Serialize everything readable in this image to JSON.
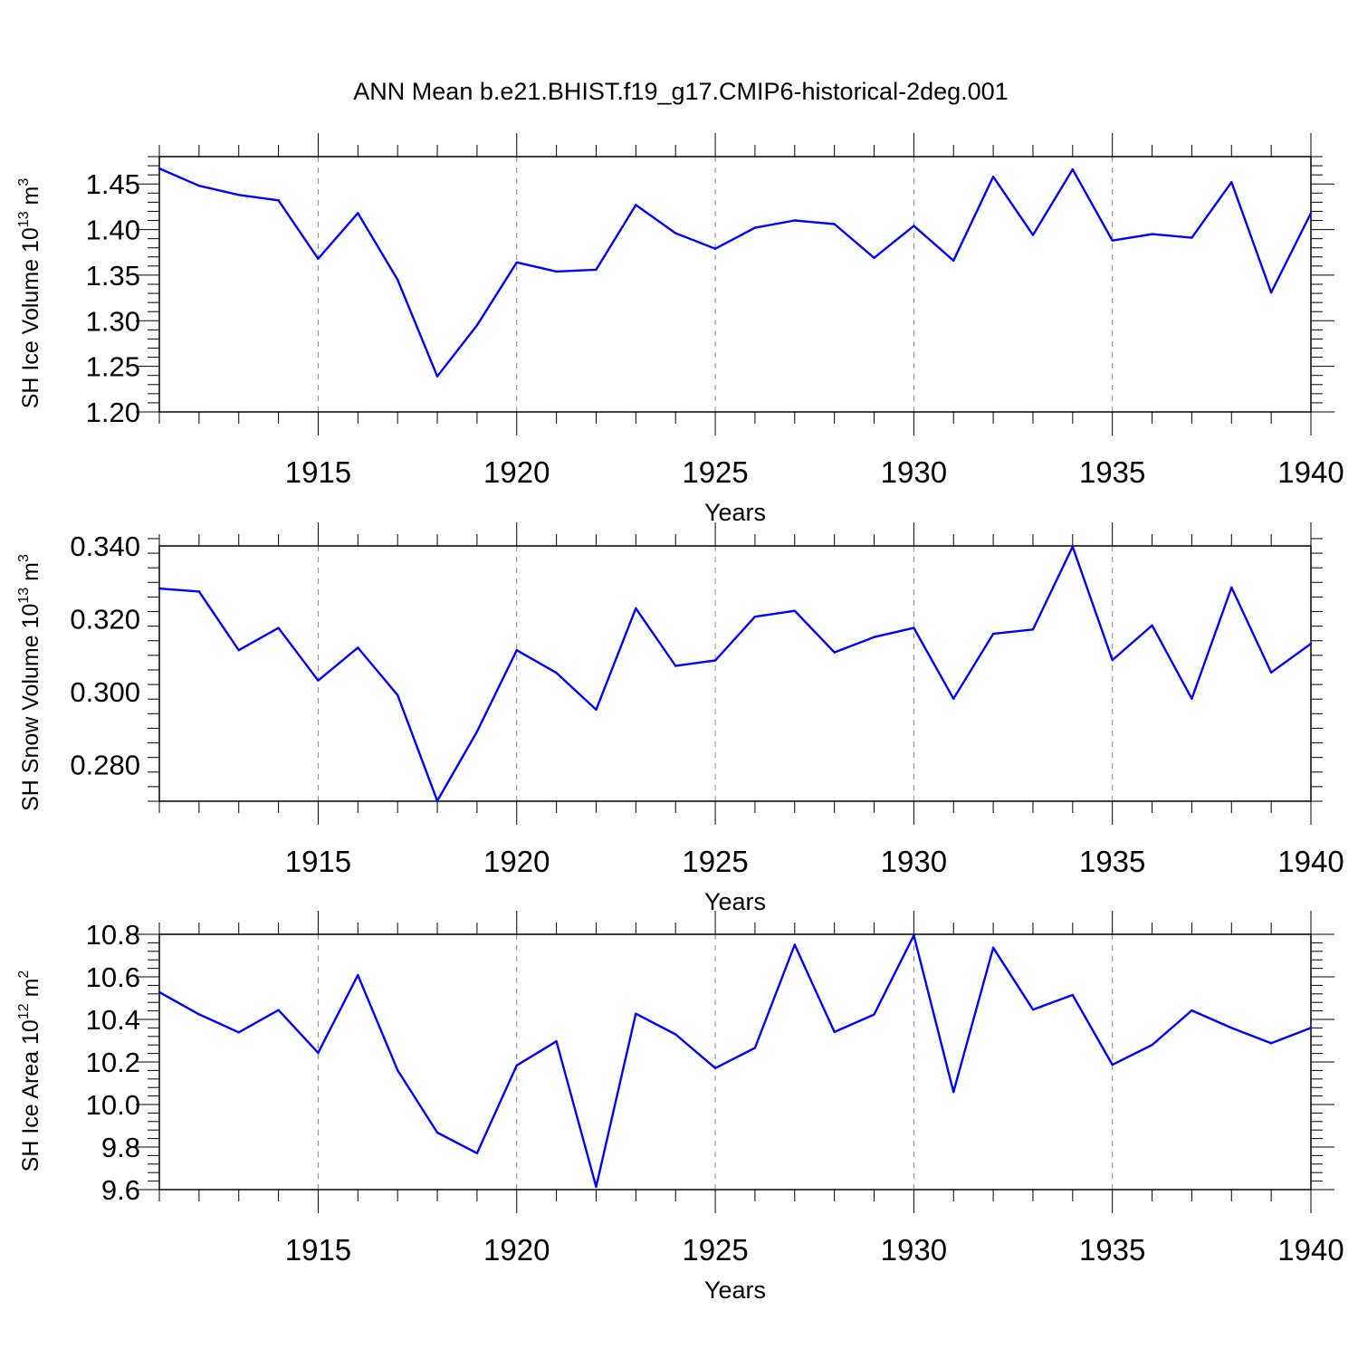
{
  "title": "ANN Mean b.e21.BHIST.f19_g17.CMIP6-historical-2deg.001",
  "chart_data": [
    {
      "type": "line",
      "ylabel": "SH Ice Volume 10",
      "ylabel_exp": "13",
      "ylabel_unit": " m",
      "ylabel_unit_exp": "3",
      "xlabel": "Years",
      "xlim": [
        1911,
        1940
      ],
      "ylim": [
        1.2,
        1.48
      ],
      "yticks": [
        "1.20",
        "1.25",
        "1.30",
        "1.35",
        "1.40",
        "1.45"
      ],
      "ytick_values": [
        1.2,
        1.25,
        1.3,
        1.35,
        1.4,
        1.45
      ],
      "xticks": [
        "1915",
        "1920",
        "1925",
        "1930",
        "1935",
        "1940"
      ],
      "xtick_values": [
        1915,
        1920,
        1925,
        1930,
        1935,
        1940
      ],
      "color": "#0000ff",
      "x": [
        1911,
        1912,
        1913,
        1914,
        1915,
        1916,
        1917,
        1918,
        1919,
        1920,
        1921,
        1922,
        1923,
        1924,
        1925,
        1926,
        1927,
        1928,
        1929,
        1930,
        1931,
        1932,
        1933,
        1934,
        1935,
        1936,
        1937,
        1938,
        1939,
        1940
      ],
      "y": [
        1.467,
        1.448,
        1.438,
        1.432,
        1.368,
        1.418,
        1.345,
        1.239,
        1.295,
        1.364,
        1.354,
        1.356,
        1.427,
        1.396,
        1.379,
        1.402,
        1.41,
        1.406,
        1.369,
        1.404,
        1.366,
        1.458,
        1.394,
        1.466,
        1.388,
        1.395,
        1.391,
        1.452,
        1.331,
        1.418
      ]
    },
    {
      "type": "line",
      "ylabel": "SH Snow Volume 10",
      "ylabel_exp": "13",
      "ylabel_unit": " m",
      "ylabel_unit_exp": "3",
      "xlabel": "Years",
      "xlim": [
        1911,
        1940
      ],
      "ylim": [
        0.27,
        0.34
      ],
      "yticks": [
        "0.280",
        "0.300",
        "0.320",
        "0.340"
      ],
      "ytick_values": [
        0.28,
        0.3,
        0.32,
        0.34
      ],
      "xticks": [
        "1915",
        "1920",
        "1925",
        "1930",
        "1935",
        "1940"
      ],
      "xtick_values": [
        1915,
        1920,
        1925,
        1930,
        1935,
        1940
      ],
      "color": "#0000ff",
      "x": [
        1911,
        1912,
        1913,
        1914,
        1915,
        1916,
        1917,
        1918,
        1919,
        1920,
        1921,
        1922,
        1923,
        1924,
        1925,
        1926,
        1927,
        1928,
        1929,
        1930,
        1931,
        1932,
        1933,
        1934,
        1935,
        1936,
        1937,
        1938,
        1939,
        1940
      ],
      "y": [
        0.3283,
        0.3275,
        0.3114,
        0.3175,
        0.3031,
        0.3121,
        0.2991,
        0.2701,
        0.2891,
        0.3114,
        0.3052,
        0.2951,
        0.3229,
        0.3071,
        0.3086,
        0.3206,
        0.3222,
        0.3108,
        0.315,
        0.3175,
        0.2981,
        0.3159,
        0.3171,
        0.3398,
        0.3087,
        0.3182,
        0.2981,
        0.3286,
        0.3053,
        0.3132
      ]
    },
    {
      "type": "line",
      "ylabel": "SH Ice Area 10",
      "ylabel_exp": "12",
      "ylabel_unit": " m",
      "ylabel_unit_exp": "2",
      "xlabel": "Years",
      "xlim": [
        1911,
        1940
      ],
      "ylim": [
        9.6,
        10.8
      ],
      "yticks": [
        "9.6",
        "9.8",
        "10.0",
        "10.2",
        "10.4",
        "10.6",
        "10.8"
      ],
      "ytick_values": [
        9.6,
        9.8,
        10.0,
        10.2,
        10.4,
        10.6,
        10.8
      ],
      "xticks": [
        "1915",
        "1920",
        "1925",
        "1930",
        "1935",
        "1940"
      ],
      "xtick_values": [
        1915,
        1920,
        1925,
        1930,
        1935,
        1940
      ],
      "color": "#0000ff",
      "x": [
        1911,
        1912,
        1913,
        1914,
        1915,
        1916,
        1917,
        1918,
        1919,
        1920,
        1921,
        1922,
        1923,
        1924,
        1925,
        1926,
        1927,
        1928,
        1929,
        1930,
        1931,
        1932,
        1933,
        1934,
        1935,
        1936,
        1937,
        1938,
        1939,
        1940
      ],
      "y": [
        10.528,
        10.424,
        10.339,
        10.444,
        10.243,
        10.608,
        10.161,
        9.868,
        9.771,
        10.184,
        10.297,
        9.613,
        10.427,
        10.33,
        10.171,
        10.266,
        10.751,
        10.341,
        10.423,
        10.795,
        10.059,
        10.737,
        10.446,
        10.515,
        10.187,
        10.28,
        10.442,
        10.36,
        10.288,
        10.36
      ]
    }
  ]
}
